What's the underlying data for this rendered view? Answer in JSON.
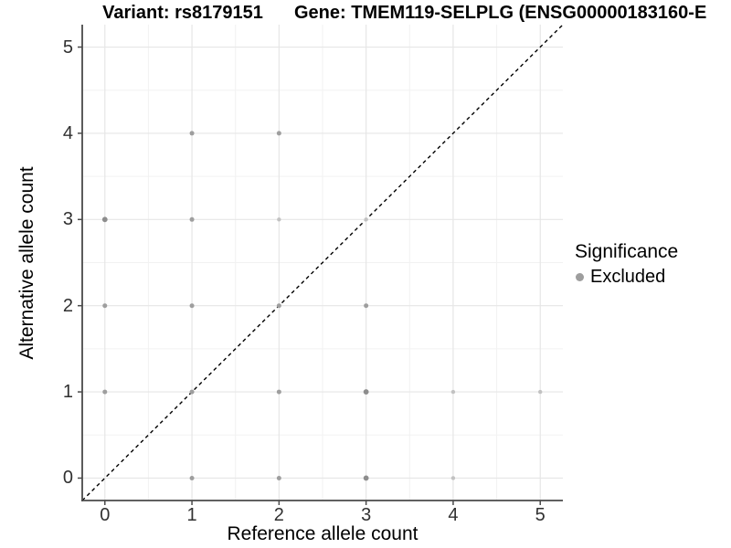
{
  "chart_data": {
    "type": "scatter",
    "title_left": "Variant: rs8179151",
    "title_right": "Gene: TMEM119-SELPLG (ENSG00000183160-E",
    "xlabel": "Reference allele count",
    "ylabel": "Alternative allele count",
    "xlim": [
      -0.26,
      5.26
    ],
    "ylim": [
      -0.26,
      5.26
    ],
    "x_ticks": [
      0,
      1,
      2,
      3,
      4,
      5
    ],
    "y_ticks": [
      0,
      1,
      2,
      3,
      4,
      5
    ],
    "grid": {
      "major": true,
      "minor": true
    },
    "identity_line": {
      "equation": "y = x",
      "style": "dashed",
      "color": "#000000"
    },
    "legend": {
      "position": "right",
      "title": "Significance",
      "items": [
        {
          "label": "Excluded",
          "marker": "dot",
          "color": "#9e9e9e"
        }
      ]
    },
    "point_style": {
      "colors": {
        "dark": "#8d8d8d",
        "medium": "#9e9e9e",
        "light": "#c2c2c2"
      },
      "radii": {
        "dark": 2.9,
        "medium": 2.5,
        "light": 2.2
      }
    },
    "points": [
      {
        "x": 0,
        "y": 1,
        "shade": "medium"
      },
      {
        "x": 0,
        "y": 2,
        "shade": "medium"
      },
      {
        "x": 0,
        "y": 3,
        "shade": "dark"
      },
      {
        "x": 1,
        "y": 0,
        "shade": "medium"
      },
      {
        "x": 1,
        "y": 1,
        "shade": "medium"
      },
      {
        "x": 1,
        "y": 2,
        "shade": "medium"
      },
      {
        "x": 1,
        "y": 3,
        "shade": "medium"
      },
      {
        "x": 1,
        "y": 4,
        "shade": "medium"
      },
      {
        "x": 2,
        "y": 0,
        "shade": "medium"
      },
      {
        "x": 2,
        "y": 1,
        "shade": "medium"
      },
      {
        "x": 2,
        "y": 2,
        "shade": "medium"
      },
      {
        "x": 2,
        "y": 3,
        "shade": "light"
      },
      {
        "x": 2,
        "y": 4,
        "shade": "medium"
      },
      {
        "x": 3,
        "y": 0,
        "shade": "dark"
      },
      {
        "x": 3,
        "y": 1,
        "shade": "dark"
      },
      {
        "x": 3,
        "y": 2,
        "shade": "medium"
      },
      {
        "x": 3,
        "y": 3,
        "shade": "light"
      },
      {
        "x": 4,
        "y": 0,
        "shade": "light"
      },
      {
        "x": 4,
        "y": 1,
        "shade": "light"
      },
      {
        "x": 5,
        "y": 1,
        "shade": "light"
      }
    ],
    "colors": {
      "axis": "#4a4a4a",
      "grid_major": "#e6e6e6",
      "grid_minor": "#f2f2f2",
      "tick_text": "#303030"
    }
  }
}
